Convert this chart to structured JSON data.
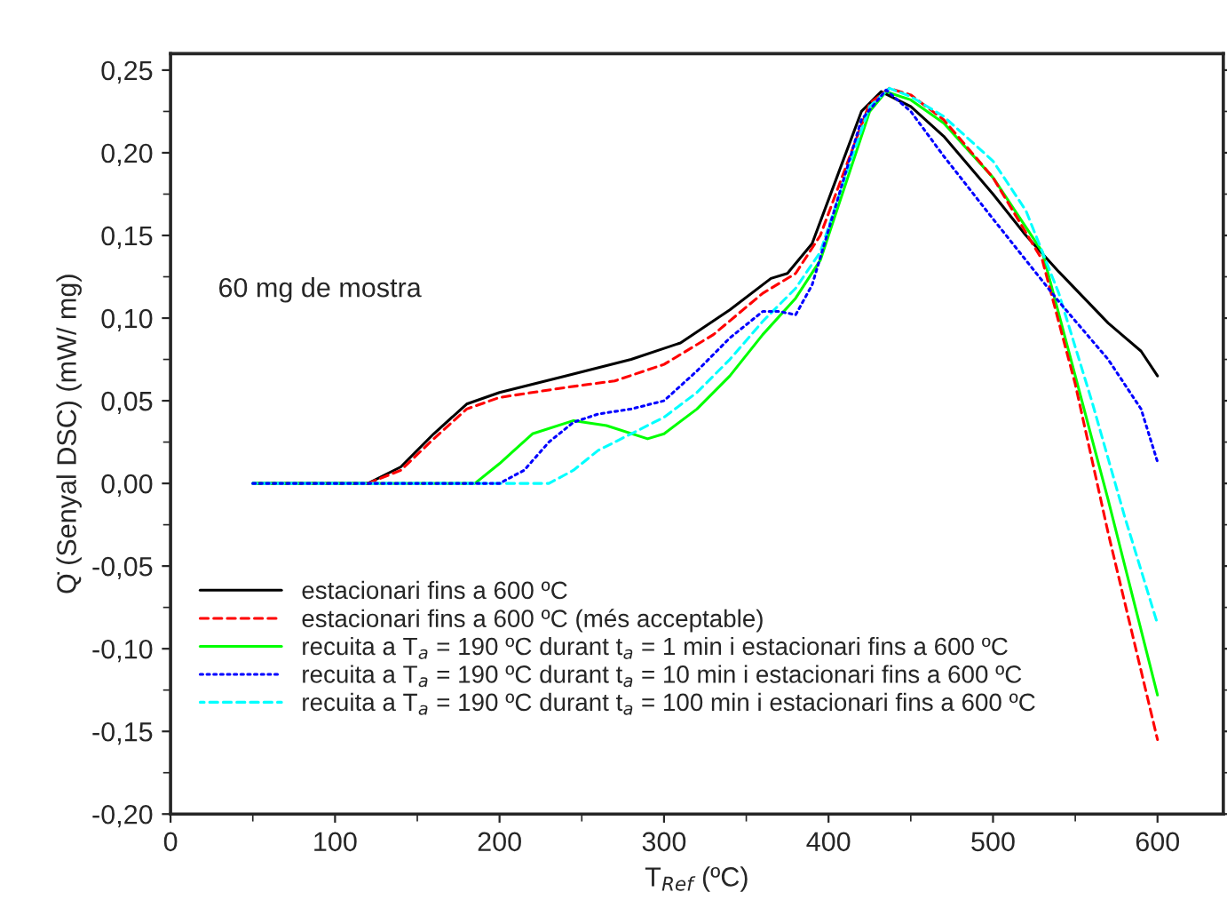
{
  "chart_data": {
    "type": "line",
    "xlabel": "T$_{Ref}$ (ºC)",
    "ylabel": "Q̇ (Senyal DSC) (mW/ mg)",
    "annotations": [
      "60 mg de mostra"
    ],
    "xlim": [
      0,
      640
    ],
    "xticks": [
      0,
      100,
      200,
      300,
      400,
      500,
      600
    ],
    "ylim": [
      -0.2,
      0.26
    ],
    "yticks": [
      {
        "value": -0.2,
        "label": "-0,20"
      },
      {
        "value": -0.15,
        "label": "-0,15"
      },
      {
        "value": -0.1,
        "label": "-0,10"
      },
      {
        "value": -0.05,
        "label": "-0,05"
      },
      {
        "value": 0,
        "label": "0,00"
      },
      {
        "value": 0.05,
        "label": "0,05"
      },
      {
        "value": 0.1,
        "label": "0,10"
      },
      {
        "value": 0.15,
        "label": "0,15"
      },
      {
        "value": 0.2,
        "label": "0,20"
      },
      {
        "value": 0.25,
        "label": "0,25"
      }
    ],
    "grid": false,
    "legend": "bottom left",
    "marker": "none",
    "series": [
      {
        "name": "estacionari fins a 600 ºC",
        "color": "#000000",
        "line_style": "solid",
        "x": [
          50,
          120,
          140,
          160,
          180,
          200,
          240,
          280,
          310,
          340,
          365,
          375,
          390,
          405,
          420,
          432,
          450,
          470,
          500,
          520,
          540,
          570,
          590,
          600
        ],
        "values": [
          0,
          0,
          0.01,
          0.03,
          0.048,
          0.055,
          0.065,
          0.075,
          0.085,
          0.105,
          0.124,
          0.127,
          0.145,
          0.185,
          0.225,
          0.237,
          0.228,
          0.21,
          0.175,
          0.15,
          0.128,
          0.097,
          0.08,
          0.065
        ]
      },
      {
        "name": "estacionari fins a 600 ºC (més acceptable)",
        "color": "#ff0000",
        "line_style": "dashed",
        "x": [
          120,
          140,
          160,
          180,
          200,
          240,
          270,
          300,
          330,
          360,
          380,
          395,
          410,
          425,
          437,
          450,
          470,
          500,
          530,
          550,
          570,
          600
        ],
        "values": [
          0,
          0.008,
          0.027,
          0.045,
          0.052,
          0.058,
          0.062,
          0.072,
          0.09,
          0.115,
          0.127,
          0.15,
          0.19,
          0.23,
          0.239,
          0.235,
          0.22,
          0.185,
          0.135,
          0.06,
          -0.03,
          -0.155
        ]
      },
      {
        "name": "recuita a T$_{a}$ = 190 ºC durant t$_{a}$ = 1 min i estacionari fins a 600 ºC",
        "color": "#00ff00",
        "line_style": "solid",
        "x": [
          50,
          185,
          200,
          220,
          245,
          265,
          290,
          300,
          320,
          340,
          360,
          380,
          395,
          410,
          425,
          435,
          450,
          470,
          500,
          530,
          550,
          570,
          600
        ],
        "values": [
          0,
          0,
          0.012,
          0.03,
          0.038,
          0.035,
          0.027,
          0.03,
          0.045,
          0.065,
          0.09,
          0.112,
          0.135,
          0.18,
          0.225,
          0.237,
          0.232,
          0.218,
          0.185,
          0.14,
          0.065,
          -0.01,
          -0.128
        ]
      },
      {
        "name": "recuita a T$_{a}$ = 190 ºC durant t$_{a}$ = 10 min i estacionari fins a 600 ºC",
        "color": "#0000ff",
        "line_style": "dotted",
        "x": [
          50,
          200,
          215,
          230,
          245,
          260,
          280,
          300,
          320,
          340,
          360,
          370,
          380,
          390,
          405,
          420,
          435,
          450,
          470,
          500,
          520,
          540,
          570,
          590,
          600
        ],
        "values": [
          0,
          0,
          0.008,
          0.025,
          0.037,
          0.042,
          0.045,
          0.05,
          0.068,
          0.088,
          0.104,
          0.104,
          0.102,
          0.12,
          0.17,
          0.22,
          0.238,
          0.225,
          0.198,
          0.16,
          0.135,
          0.11,
          0.075,
          0.045,
          0.013
        ]
      },
      {
        "name": "recuita a T$_{a}$ = 190 ºC durant t$_{a}$ = 100 min i estacionari fins a 600 ºC",
        "color": "#00ffff",
        "line_style": "dashed",
        "x": [
          50,
          230,
          245,
          260,
          280,
          300,
          320,
          340,
          360,
          380,
          395,
          410,
          425,
          437,
          450,
          470,
          500,
          520,
          540,
          560,
          580,
          600
        ],
        "values": [
          0,
          0,
          0.008,
          0.02,
          0.03,
          0.04,
          0.055,
          0.075,
          0.098,
          0.118,
          0.14,
          0.185,
          0.228,
          0.239,
          0.234,
          0.222,
          0.195,
          0.165,
          0.115,
          0.05,
          -0.02,
          -0.085
        ]
      }
    ]
  }
}
